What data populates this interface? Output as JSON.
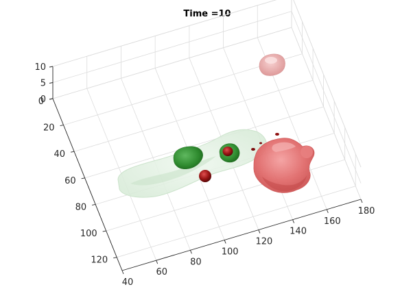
{
  "chart_data": {
    "type": "3d-isosurface",
    "title": "Time =10",
    "xlabel": "",
    "ylabel": "",
    "zlabel": "",
    "xlim": [
      40,
      180
    ],
    "ylim": [
      0,
      130
    ],
    "zlim": [
      0,
      10
    ],
    "x_ticks": [
      "40",
      "60",
      "80",
      "100",
      "120",
      "140",
      "160",
      "180"
    ],
    "y_ticks": [
      "0",
      "20",
      "40",
      "60",
      "80",
      "100",
      "120"
    ],
    "z_ticks": [
      "0",
      "5",
      "10"
    ],
    "grid": true,
    "colors": {
      "axis": "#262626",
      "grid": "#dcdcdc",
      "light_green": "#dcefdc",
      "green": "#2f8a2f",
      "dark_red": "#8e0f0f",
      "red": "#e06a6a",
      "pink": "#e9a9a9"
    }
  }
}
